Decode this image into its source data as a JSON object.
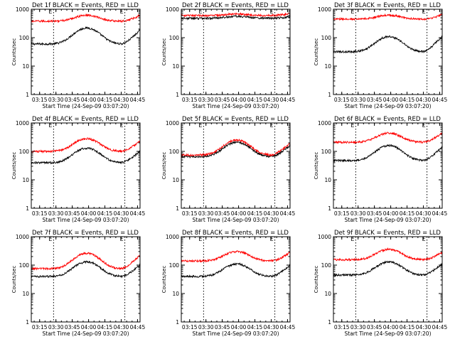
{
  "figure_title": "",
  "chart_data": [
    {
      "type": "line",
      "title": "Det 1f BLACK = Events, RED = LLD",
      "ylabel": "Counts/sec",
      "xlabel": "Start Time (24-Sep-09 03:07:20)",
      "yscale": "log",
      "ylim": [
        1,
        1000
      ],
      "yticks": [
        "1",
        "10",
        "100",
        "1000"
      ],
      "xlim_minutes": [
        0,
        100
      ],
      "xtick_minutes": [
        7.67,
        22.67,
        37.67,
        52.67,
        67.67,
        82.67,
        97.67
      ],
      "xticks": [
        "03:15",
        "03:30",
        "03:45",
        "04:00",
        "04:15",
        "04:30",
        "04:45"
      ],
      "markers": [
        {
          "label": "E",
          "minute": 20.5
        },
        {
          "label": "E",
          "minute": 86
        }
      ],
      "series": [
        {
          "name": "Events",
          "color": "#000000",
          "base": 60,
          "peak": 220,
          "center": 51,
          "width": 14,
          "end": 180
        },
        {
          "name": "LLD",
          "color": "#ff0000",
          "base": 380,
          "peak": 620,
          "center": 51,
          "width": 14,
          "end": 620
        }
      ]
    },
    {
      "type": "line",
      "title": "Det 2f BLACK = Events, RED = LLD",
      "ylabel": "Counts/sec",
      "xlabel": "Start Time (24-Sep-09 03:07:20)",
      "yscale": "log",
      "ylim": [
        1,
        1000
      ],
      "yticks": [
        "1",
        "10",
        "100",
        "1000"
      ],
      "xlim_minutes": [
        0,
        100
      ],
      "xtick_minutes": [
        7.67,
        22.67,
        37.67,
        52.67,
        67.67,
        82.67,
        97.67
      ],
      "xticks": [
        "03:15",
        "03:30",
        "03:45",
        "04:00",
        "04:15",
        "04:30",
        "04:45"
      ],
      "markers": [
        {
          "label": "E",
          "minute": 20.5
        },
        {
          "label": "E",
          "minute": 86
        }
      ],
      "series": [
        {
          "name": "Events",
          "color": "#000000",
          "base": 480,
          "peak": 560,
          "center": 51,
          "width": 14,
          "end": 560
        },
        {
          "name": "LLD",
          "color": "#ff0000",
          "base": 600,
          "peak": 680,
          "center": 51,
          "width": 14,
          "end": 700
        }
      ]
    },
    {
      "type": "line",
      "title": "Det 3f BLACK = Events, RED = LLD",
      "ylabel": "Counts/sec",
      "xlabel": "Start Time (24-Sep-09 03:07:20)",
      "yscale": "log",
      "ylim": [
        1,
        1000
      ],
      "yticks": [
        "1",
        "10",
        "100",
        "1000"
      ],
      "xlim_minutes": [
        0,
        100
      ],
      "xtick_minutes": [
        7.67,
        22.67,
        37.67,
        52.67,
        67.67,
        82.67,
        97.67
      ],
      "xticks": [
        "03:15",
        "03:30",
        "03:45",
        "04:00",
        "04:15",
        "04:30",
        "04:45"
      ],
      "markers": [
        {
          "label": "E",
          "minute": 20.5
        },
        {
          "label": "E",
          "minute": 86
        }
      ],
      "series": [
        {
          "name": "Events",
          "color": "#000000",
          "base": 32,
          "peak": 110,
          "center": 51,
          "width": 14,
          "end": 110
        },
        {
          "name": "LLD",
          "color": "#ff0000",
          "base": 450,
          "peak": 620,
          "center": 51,
          "width": 14,
          "end": 650
        }
      ]
    },
    {
      "type": "line",
      "title": "Det 4f BLACK = Events, RED = LLD",
      "ylabel": "Counts/sec",
      "xlabel": "Start Time (24-Sep-09 03:07:20)",
      "yscale": "log",
      "ylim": [
        1,
        1000
      ],
      "yticks": [
        "1",
        "10",
        "100",
        "1000"
      ],
      "xlim_minutes": [
        0,
        100
      ],
      "xtick_minutes": [
        7.67,
        22.67,
        37.67,
        52.67,
        67.67,
        82.67,
        97.67
      ],
      "xticks": [
        "03:15",
        "03:30",
        "03:45",
        "04:00",
        "04:15",
        "04:30",
        "04:45"
      ],
      "markers": [
        {
          "label": "E",
          "minute": 20.5
        },
        {
          "label": "E",
          "minute": 86
        }
      ],
      "series": [
        {
          "name": "Events",
          "color": "#000000",
          "base": 40,
          "peak": 130,
          "center": 51,
          "width": 14,
          "end": 100
        },
        {
          "name": "LLD",
          "color": "#ff0000",
          "base": 100,
          "peak": 280,
          "center": 51,
          "width": 14,
          "end": 230
        }
      ]
    },
    {
      "type": "line",
      "title": "Det 5f BLACK = Events, RED = LLD",
      "ylabel": "Counts/sec",
      "xlabel": "Start Time (24-Sep-09 03:07:20)",
      "yscale": "log",
      "ylim": [
        1,
        1000
      ],
      "yticks": [
        "1",
        "10",
        "100",
        "1000"
      ],
      "xlim_minutes": [
        0,
        100
      ],
      "xtick_minutes": [
        7.67,
        22.67,
        37.67,
        52.67,
        67.67,
        82.67,
        97.67
      ],
      "xticks": [
        "03:15",
        "03:30",
        "03:45",
        "04:00",
        "04:15",
        "04:30",
        "04:45"
      ],
      "markers": [
        {
          "label": "E",
          "minute": 20.5
        },
        {
          "label": "E",
          "minute": 86
        }
      ],
      "series": [
        {
          "name": "Events",
          "color": "#000000",
          "base": 65,
          "peak": 210,
          "center": 51,
          "width": 14,
          "end": 160
        },
        {
          "name": "LLD",
          "color": "#ff0000",
          "base": 75,
          "peak": 250,
          "center": 51,
          "width": 14,
          "end": 190
        }
      ]
    },
    {
      "type": "line",
      "title": "Det 6f BLACK = Events, RED = LLD",
      "ylabel": "Counts/sec",
      "xlabel": "Start Time (24-Sep-09 03:07:20)",
      "yscale": "log",
      "ylim": [
        1,
        1000
      ],
      "yticks": [
        "1",
        "10",
        "100",
        "1000"
      ],
      "xlim_minutes": [
        0,
        100
      ],
      "xtick_minutes": [
        7.67,
        22.67,
        37.67,
        52.67,
        67.67,
        82.67,
        97.67
      ],
      "xticks": [
        "03:15",
        "03:30",
        "03:45",
        "04:00",
        "04:15",
        "04:30",
        "04:45"
      ],
      "markers": [
        {
          "label": "E",
          "minute": 20.5
        },
        {
          "label": "E",
          "minute": 86
        }
      ],
      "series": [
        {
          "name": "Events",
          "color": "#000000",
          "base": 48,
          "peak": 160,
          "center": 51,
          "width": 14,
          "end": 140
        },
        {
          "name": "LLD",
          "color": "#ff0000",
          "base": 210,
          "peak": 440,
          "center": 51,
          "width": 14,
          "end": 450
        }
      ]
    },
    {
      "type": "line",
      "title": "Det 7f BLACK = Events, RED = LLD",
      "ylabel": "Counts/sec",
      "xlabel": "Start Time (24-Sep-09 03:07:20)",
      "yscale": "log",
      "ylim": [
        1,
        1000
      ],
      "yticks": [
        "1",
        "10",
        "100",
        "1000"
      ],
      "xlim_minutes": [
        0,
        100
      ],
      "xtick_minutes": [
        7.67,
        22.67,
        37.67,
        52.67,
        67.67,
        82.67,
        97.67
      ],
      "xticks": [
        "03:15",
        "03:30",
        "03:45",
        "04:00",
        "04:15",
        "04:30",
        "04:45"
      ],
      "markers": [
        {
          "label": "E",
          "minute": 20.5
        },
        {
          "label": "E",
          "minute": 86
        }
      ],
      "series": [
        {
          "name": "Events",
          "color": "#000000",
          "base": 40,
          "peak": 130,
          "center": 51,
          "width": 14,
          "end": 100
        },
        {
          "name": "LLD",
          "color": "#ff0000",
          "base": 75,
          "peak": 260,
          "center": 51,
          "width": 14,
          "end": 220
        }
      ]
    },
    {
      "type": "line",
      "title": "Det 8f BLACK = Events, RED = LLD",
      "ylabel": "Counts/sec",
      "xlabel": "Start Time (24-Sep-09 03:07:20)",
      "yscale": "log",
      "ylim": [
        1,
        1000
      ],
      "yticks": [
        "1",
        "10",
        "100",
        "1000"
      ],
      "xlim_minutes": [
        0,
        100
      ],
      "xtick_minutes": [
        7.67,
        22.67,
        37.67,
        52.67,
        67.67,
        82.67,
        97.67
      ],
      "xticks": [
        "03:15",
        "03:30",
        "03:45",
        "04:00",
        "04:15",
        "04:30",
        "04:45"
      ],
      "markers": [
        {
          "label": "E",
          "minute": 20.5
        },
        {
          "label": "E",
          "minute": 86
        }
      ],
      "series": [
        {
          "name": "Events",
          "color": "#000000",
          "base": 40,
          "peak": 110,
          "center": 51,
          "width": 14,
          "end": 100
        },
        {
          "name": "LLD",
          "color": "#ff0000",
          "base": 140,
          "peak": 300,
          "center": 51,
          "width": 14,
          "end": 280
        }
      ]
    },
    {
      "type": "line",
      "title": "Det 9f BLACK = Events, RED = LLD",
      "ylabel": "Counts/sec",
      "xlabel": "Start Time (24-Sep-09 03:07:20)",
      "yscale": "log",
      "ylim": [
        1,
        1000
      ],
      "yticks": [
        "1",
        "10",
        "100",
        "1000"
      ],
      "xlim_minutes": [
        0,
        100
      ],
      "xtick_minutes": [
        7.67,
        22.67,
        37.67,
        52.67,
        67.67,
        82.67,
        97.67
      ],
      "xticks": [
        "03:15",
        "03:30",
        "03:45",
        "04:00",
        "04:15",
        "04:30",
        "04:45"
      ],
      "markers": [
        {
          "label": "E",
          "minute": 20.5
        },
        {
          "label": "E",
          "minute": 86
        }
      ],
      "series": [
        {
          "name": "Events",
          "color": "#000000",
          "base": 45,
          "peak": 130,
          "center": 51,
          "width": 14,
          "end": 110
        },
        {
          "name": "LLD",
          "color": "#ff0000",
          "base": 155,
          "peak": 360,
          "center": 51,
          "width": 14,
          "end": 280
        }
      ]
    }
  ]
}
